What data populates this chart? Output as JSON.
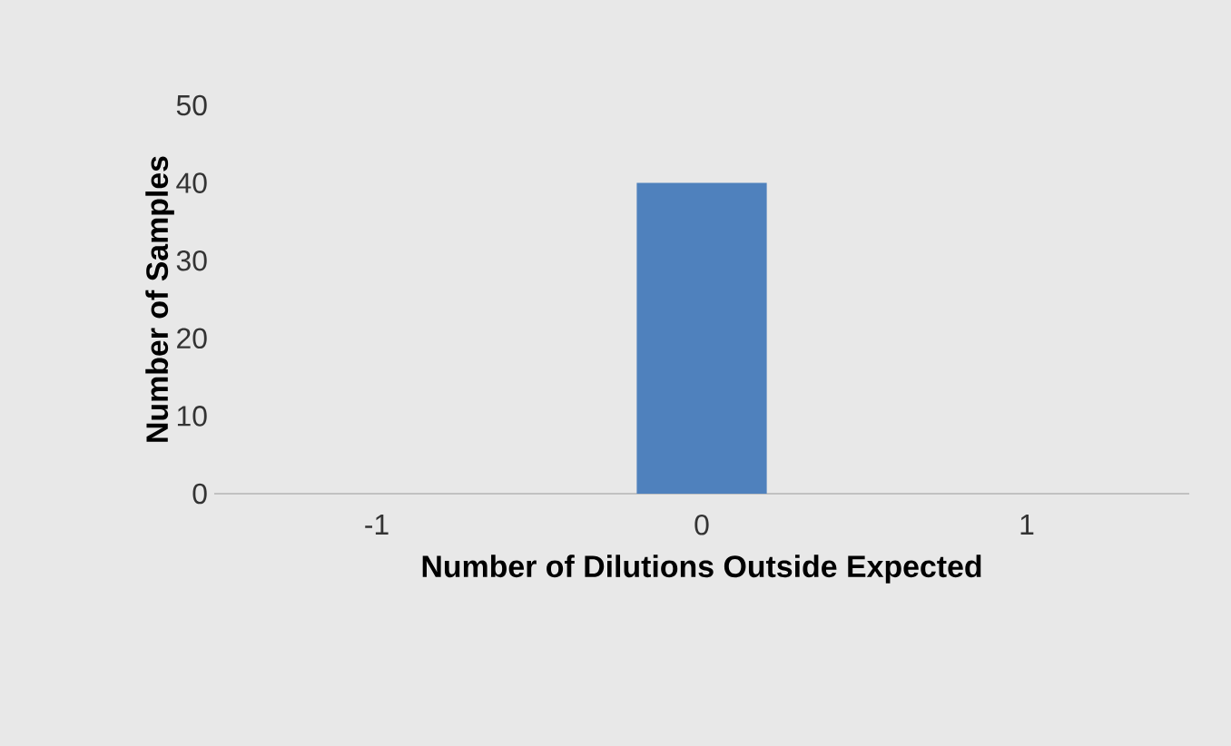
{
  "chart_data": {
    "type": "bar",
    "xlabel": "Number of Dilutions Outside Expected",
    "ylabel": "Number of Samples",
    "categories": [
      "-1",
      "0",
      "1"
    ],
    "values": [
      0,
      40,
      0
    ],
    "color": "#4f81bd",
    "ylim": [
      0,
      50
    ],
    "yticks": [
      0,
      10,
      20,
      30,
      40,
      50
    ]
  }
}
